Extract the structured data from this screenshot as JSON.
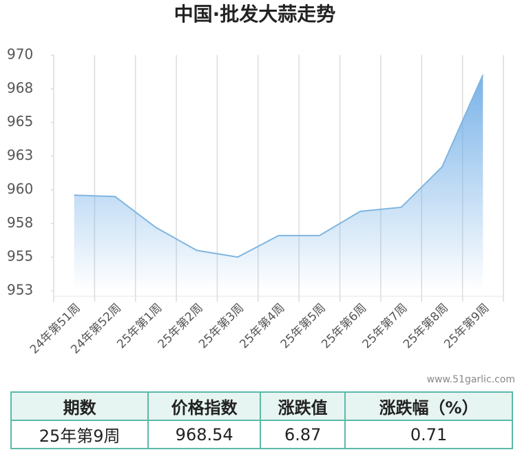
{
  "chart_data": {
    "type": "line",
    "title": "中国·批发大蒜走势",
    "categories": [
      "24年第51周",
      "24年第52周",
      "25年第1周",
      "25年第2周",
      "25年第3周",
      "25年第4周",
      "25年第5周",
      "25年第6周",
      "25年第7周",
      "25年第8周",
      "25年第9周"
    ],
    "values": [
      959.6,
      959.5,
      957.2,
      955.5,
      955.0,
      956.6,
      956.6,
      958.4,
      958.7,
      961.7,
      968.54
    ],
    "color": "#7fb5e0",
    "area": true,
    "ylim": [
      952.5,
      970
    ],
    "yticks": [
      {
        "value": 952.5,
        "label": "953"
      },
      955,
      {
        "value": 957.5,
        "label": "958"
      },
      960,
      {
        "value": 962.5,
        "label": "963"
      },
      965,
      {
        "value": 967.5,
        "label": "968"
      },
      970
    ]
  },
  "watermark": "www.51garlic.com",
  "table": {
    "header": [
      "期数",
      "价格指数",
      "涨跌值",
      "涨跌幅（%）"
    ],
    "rows": [
      [
        "25年第9周",
        "968.54",
        "6.87",
        "0.71"
      ]
    ]
  }
}
